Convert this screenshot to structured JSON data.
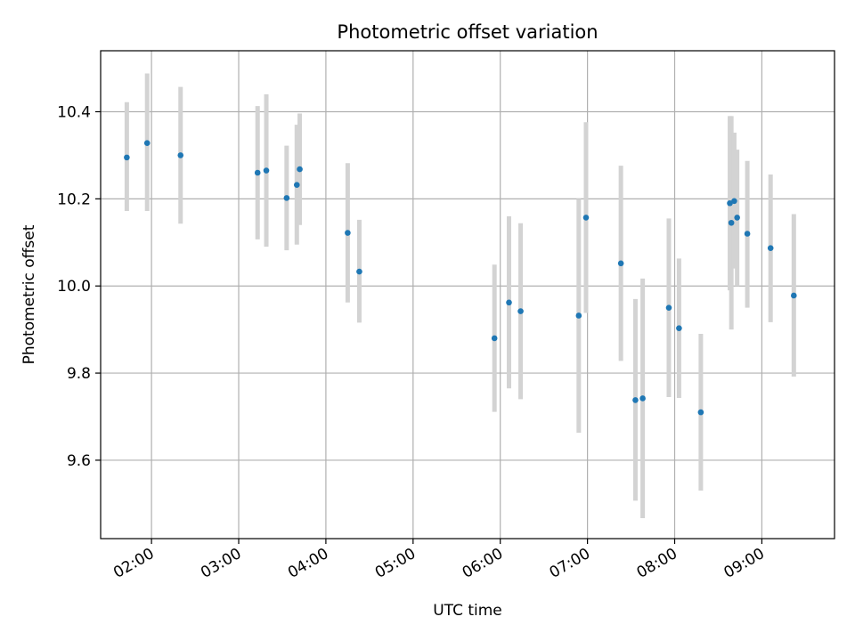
{
  "chart_data": {
    "type": "scatter",
    "title": "Photometric offset variation",
    "xlabel": "UTC time",
    "ylabel": "Photometric offset",
    "x_unit": "hours UTC",
    "xlim": [
      "01:25",
      "09:50"
    ],
    "ylim": [
      9.42,
      10.54
    ],
    "x_ticks": [
      "02:00",
      "03:00",
      "04:00",
      "05:00",
      "06:00",
      "07:00",
      "08:00",
      "09:00"
    ],
    "y_ticks": [
      9.6,
      9.8,
      10.0,
      10.2,
      10.4
    ],
    "y_tick_labels": [
      "9.6",
      "9.8",
      "10.0",
      "10.2",
      "10.4"
    ],
    "grid": true,
    "legend": "none",
    "colors": {
      "points": "#1f77b4",
      "error_bars": "#d3d3d3",
      "grid": "#b0b0b0"
    },
    "series": [
      {
        "points": [
          {
            "x": "01:43",
            "y": 10.295,
            "low": 10.172,
            "high": 10.422
          },
          {
            "x": "01:57",
            "y": 10.328,
            "low": 10.172,
            "high": 10.488
          },
          {
            "x": "02:20",
            "y": 10.3,
            "low": 10.143,
            "high": 10.457
          },
          {
            "x": "03:13",
            "y": 10.26,
            "low": 10.107,
            "high": 10.413
          },
          {
            "x": "03:19",
            "y": 10.265,
            "low": 10.09,
            "high": 10.44
          },
          {
            "x": "03:33",
            "y": 10.202,
            "low": 10.082,
            "high": 10.322
          },
          {
            "x": "03:40",
            "y": 10.232,
            "low": 10.095,
            "high": 10.37
          },
          {
            "x": "03:42",
            "y": 10.268,
            "low": 10.14,
            "high": 10.396
          },
          {
            "x": "04:15",
            "y": 10.122,
            "low": 9.962,
            "high": 10.282
          },
          {
            "x": "04:23",
            "y": 10.033,
            "low": 9.916,
            "high": 10.152
          },
          {
            "x": "05:56",
            "y": 9.88,
            "low": 9.711,
            "high": 10.049
          },
          {
            "x": "06:06",
            "y": 9.962,
            "low": 9.765,
            "high": 10.16
          },
          {
            "x": "06:14",
            "y": 9.942,
            "low": 9.74,
            "high": 10.144
          },
          {
            "x": "06:54",
            "y": 9.932,
            "low": 9.663,
            "high": 10.2
          },
          {
            "x": "06:59",
            "y": 10.157,
            "low": 9.938,
            "high": 10.376
          },
          {
            "x": "07:23",
            "y": 10.052,
            "low": 9.828,
            "high": 10.276
          },
          {
            "x": "07:33",
            "y": 9.738,
            "low": 9.507,
            "high": 9.97
          },
          {
            "x": "07:38",
            "y": 9.742,
            "low": 9.467,
            "high": 10.017
          },
          {
            "x": "07:56",
            "y": 9.95,
            "low": 9.745,
            "high": 10.155
          },
          {
            "x": "08:03",
            "y": 9.903,
            "low": 9.743,
            "high": 10.063
          },
          {
            "x": "08:18",
            "y": 9.71,
            "low": 9.53,
            "high": 9.89
          },
          {
            "x": "08:38",
            "y": 10.19,
            "low": 9.99,
            "high": 10.39
          },
          {
            "x": "08:39",
            "y": 10.145,
            "low": 9.9,
            "high": 10.39
          },
          {
            "x": "08:41",
            "y": 10.195,
            "low": 10.04,
            "high": 10.352
          },
          {
            "x": "08:43",
            "y": 10.157,
            "low": 10.0,
            "high": 10.313
          },
          {
            "x": "08:50",
            "y": 10.12,
            "low": 9.95,
            "high": 10.287
          },
          {
            "x": "09:06",
            "y": 10.087,
            "low": 9.917,
            "high": 10.256
          },
          {
            "x": "09:22",
            "y": 9.978,
            "low": 9.792,
            "high": 10.165
          }
        ]
      }
    ]
  }
}
